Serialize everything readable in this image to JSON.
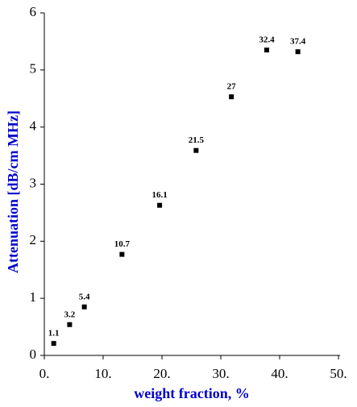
{
  "chart_data": {
    "type": "scatter",
    "x_label": "weight fraction, %",
    "y_label": "Attenuation [dB/cm MHz]",
    "x": [
      1.6,
      4.3,
      6.8,
      13.2,
      19.6,
      25.8,
      31.8,
      37.8,
      43.1
    ],
    "values": [
      0.21,
      0.54,
      0.85,
      1.77,
      2.63,
      3.59,
      4.53,
      5.35,
      5.32
    ],
    "point_labels": [
      1.1,
      3.2,
      5.4,
      10.7,
      16.1,
      21.5,
      27,
      32.4,
      37.4
    ],
    "color": "#000000",
    "axis_label_color": "#0000cc",
    "xlim": [
      0,
      50
    ],
    "ylim": [
      0,
      6
    ],
    "xticks": [
      {
        "value": 0,
        "label": "0."
      },
      {
        "value": 10,
        "label": "10."
      },
      {
        "value": 20,
        "label": "20."
      },
      {
        "value": 30,
        "label": "30."
      },
      {
        "value": 40,
        "label": "40."
      },
      {
        "value": 50,
        "label": "50."
      }
    ],
    "yticks": [
      0,
      1,
      2,
      3,
      4,
      5,
      6
    ]
  }
}
